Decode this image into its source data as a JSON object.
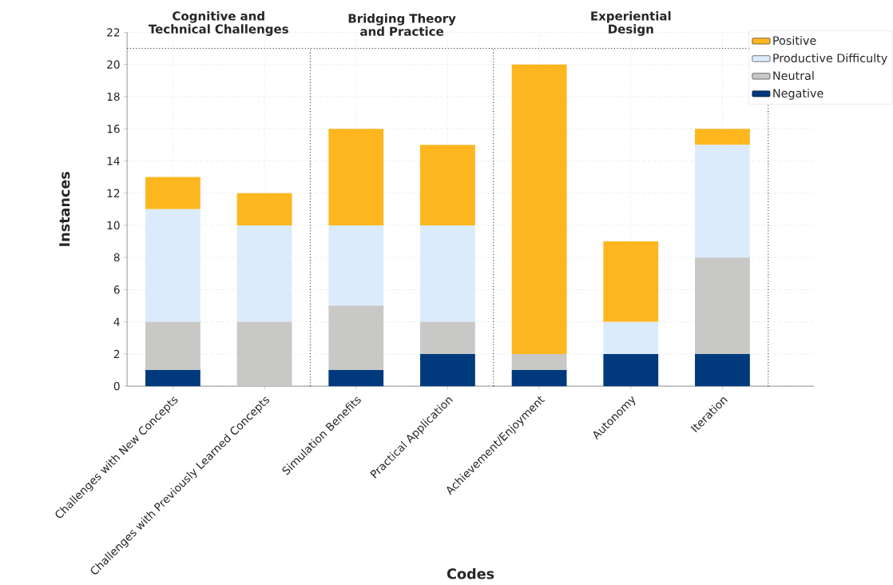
{
  "chart_data": {
    "type": "bar",
    "stacked": true,
    "xlabel": "Codes",
    "ylabel": "Instances",
    "categories": [
      "Challenges with New Concepts",
      "Challenges with Previously Learned Concepts",
      "Simulation Benefits",
      "Practical Application",
      "Achievement/Enjoyment",
      "Autonomy",
      "Iteration"
    ],
    "series": [
      {
        "name": "Negative",
        "color": "#003a7d",
        "values": [
          1,
          0,
          1,
          2,
          1,
          2,
          2
        ]
      },
      {
        "name": "Neutral",
        "color": "#c8c8c6",
        "values": [
          3,
          4,
          4,
          2,
          1,
          0,
          6
        ]
      },
      {
        "name": "Productive Difficulty",
        "color": "#dbebfc",
        "values": [
          7,
          6,
          5,
          6,
          0,
          2,
          7
        ]
      },
      {
        "name": "Positive",
        "color": "#fdb61e",
        "values": [
          2,
          2,
          6,
          5,
          18,
          5,
          1
        ]
      }
    ],
    "ylim": [
      0,
      22
    ],
    "yticks": [
      0,
      2,
      4,
      6,
      8,
      10,
      12,
      14,
      16,
      18,
      20,
      22
    ],
    "grid": true,
    "legend": "top right",
    "ref_lines": [
      {
        "axis": "y",
        "value": 21,
        "line_style": "dotted"
      }
    ],
    "annotations": [
      "Cognitive and Technical Challenges",
      "Bridging Theory and Practice",
      "Experiential Design"
    ]
  }
}
